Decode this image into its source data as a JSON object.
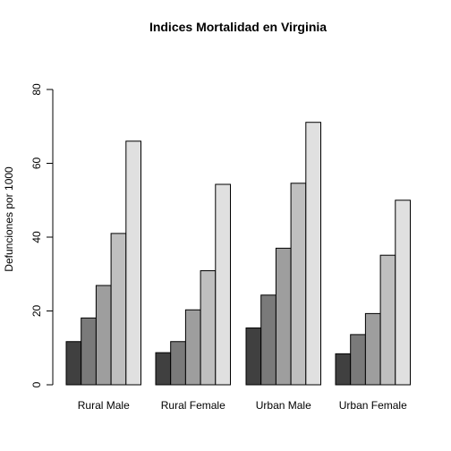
{
  "chart_data": {
    "type": "bar",
    "title": "Indices Mortalidad en Virginia",
    "xlabel": "",
    "ylabel": "Defunciones por 1000",
    "ylim": [
      0,
      80
    ],
    "yticks": [
      0,
      20,
      40,
      60,
      80
    ],
    "grid": false,
    "legend": "none",
    "categories": [
      "Rural Male",
      "Rural Female",
      "Urban Male",
      "Urban Female"
    ],
    "series": [
      {
        "values": [
          11.7,
          8.7,
          15.4,
          8.4
        ],
        "color": "#404040"
      },
      {
        "values": [
          18.1,
          11.7,
          24.3,
          13.6
        ],
        "color": "#7a7a7a"
      },
      {
        "values": [
          26.9,
          20.3,
          37.0,
          19.3
        ],
        "color": "#9e9e9e"
      },
      {
        "values": [
          41.0,
          30.9,
          54.6,
          35.1
        ],
        "color": "#bfbfbf"
      },
      {
        "values": [
          66.0,
          54.3,
          71.1,
          50.0
        ],
        "color": "#e0e0e0"
      }
    ]
  }
}
